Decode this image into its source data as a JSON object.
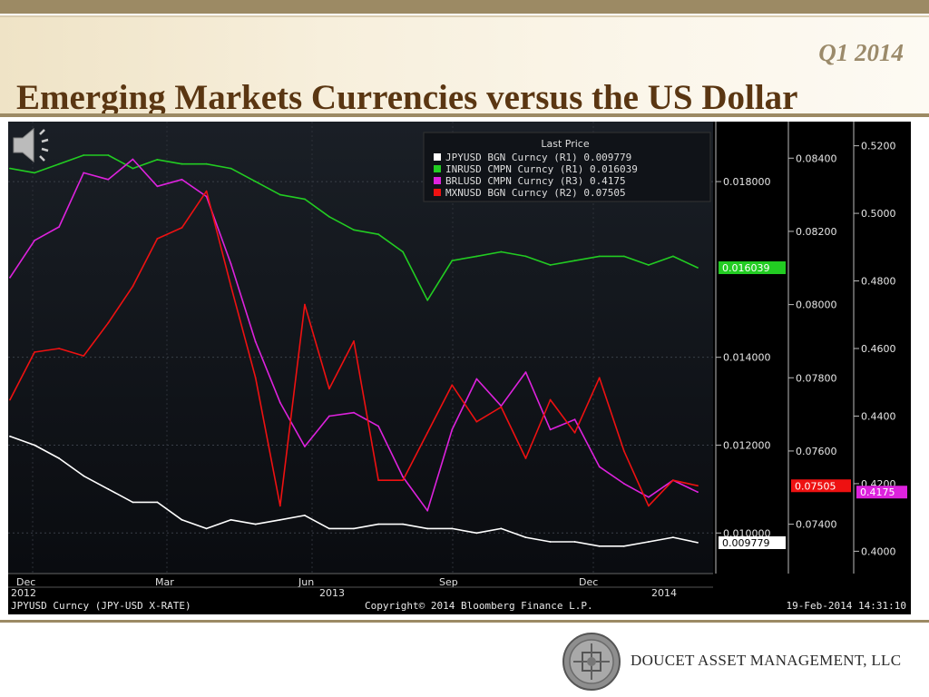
{
  "header": {
    "quarter": "Q1 2014",
    "title": "Emerging Markets Currencies versus the US Dollar"
  },
  "footer": {
    "company": "DOUCET ASSET MANAGEMENT, LLC"
  },
  "chart_data": {
    "type": "line",
    "legend": {
      "title": "Last Price",
      "placement": "top-right",
      "entries": [
        {
          "label": "JPYUSD BGN Curncy (R1) 0.009779",
          "color": "#ffffff"
        },
        {
          "label": "INRUSD CMPN Curncy (R1) 0.016039",
          "color": "#22cc22"
        },
        {
          "label": "BRLUSD CMPN Curncy (R3) 0.4175",
          "color": "#dd22dd"
        },
        {
          "label": "MXNUSD BGN Curncy (R2) 0.07505",
          "color": "#ee1111"
        }
      ]
    },
    "x_ticks": [
      "Dec",
      "Mar",
      "Jun",
      "Sep",
      "Dec"
    ],
    "x_year_labels": [
      "2012",
      "2013",
      "2014"
    ],
    "x_tick_2014": "2014",
    "footer_left": "JPYUSD Curncy (JPY-USD X-RATE)",
    "footer_center": "Copyright© 2014 Bloomberg Finance L.P.",
    "footer_right": "19-Feb-2014 14:31:10",
    "axes": {
      "R1": {
        "ylim": [
          0.0092,
          0.0192
        ],
        "ticks": [
          "0.018000",
          "0.014000",
          "0.012000",
          "0.010000"
        ],
        "tick_values": [
          0.018,
          0.014,
          0.012,
          0.01
        ]
      },
      "R2": {
        "ylim": [
          0.0728,
          0.0848
        ],
        "ticks": [
          "0.08400",
          "0.08200",
          "0.08000",
          "0.07800",
          "0.07600",
          "0.07400"
        ],
        "tick_values": [
          0.084,
          0.082,
          0.08,
          0.078,
          0.076,
          0.074
        ]
      },
      "R3": {
        "ylim": [
          0.395,
          0.525
        ],
        "ticks": [
          "0.5200",
          "0.5000",
          "0.4800",
          "0.4600",
          "0.4400",
          "0.4200",
          "0.4000"
        ],
        "tick_values": [
          0.52,
          0.5,
          0.48,
          0.46,
          0.44,
          0.42,
          0.4
        ]
      }
    },
    "last_value_tags": [
      {
        "series": "INRUSD",
        "label": "0.016039",
        "axis": "R1",
        "value": 0.016039,
        "color": "#22cc22"
      },
      {
        "series": "JPYUSD",
        "label": "0.009779",
        "axis": "R1",
        "value": 0.009779,
        "color": "#ffffff"
      },
      {
        "series": "MXNUSD",
        "label": "0.07505",
        "axis": "R2",
        "value": 0.07505,
        "color": "#ee1111"
      },
      {
        "series": "BRLUSD",
        "label": "0.4175",
        "axis": "R3",
        "value": 0.4175,
        "color": "#dd22dd"
      }
    ],
    "series": [
      {
        "name": "JPYUSD BGN Curncy",
        "axis": "R1",
        "color": "#ffffff",
        "values": [
          0.0122,
          0.012,
          0.0117,
          0.0113,
          0.011,
          0.0107,
          0.0107,
          0.0103,
          0.0101,
          0.0103,
          0.0102,
          0.0103,
          0.0104,
          0.0101,
          0.0101,
          0.0102,
          0.0102,
          0.0101,
          0.0101,
          0.01,
          0.0101,
          0.0099,
          0.0098,
          0.0098,
          0.0097,
          0.0097,
          0.0098,
          0.0099,
          0.00978
        ]
      },
      {
        "name": "INRUSD CMPN Curncy",
        "axis": "R1",
        "color": "#22cc22",
        "values": [
          0.0183,
          0.0182,
          0.0184,
          0.0186,
          0.0186,
          0.0183,
          0.0185,
          0.0184,
          0.0184,
          0.0183,
          0.018,
          0.0177,
          0.0176,
          0.0172,
          0.0169,
          0.0168,
          0.0164,
          0.0153,
          0.0162,
          0.0163,
          0.0164,
          0.0163,
          0.0161,
          0.0162,
          0.0163,
          0.0163,
          0.0161,
          0.0163,
          0.016039
        ]
      },
      {
        "name": "BRLUSD CMPN Curncy",
        "axis": "R3",
        "color": "#dd22dd",
        "values": [
          0.481,
          0.492,
          0.496,
          0.512,
          0.51,
          0.516,
          0.508,
          0.51,
          0.505,
          0.485,
          0.462,
          0.444,
          0.431,
          0.44,
          0.441,
          0.437,
          0.422,
          0.412,
          0.436,
          0.451,
          0.443,
          0.453,
          0.436,
          0.439,
          0.425,
          0.42,
          0.416,
          0.421,
          0.4175
        ]
      },
      {
        "name": "MXNUSD BGN Curncy",
        "axis": "R2",
        "color": "#ee1111",
        "values": [
          0.0774,
          0.0787,
          0.0788,
          0.0786,
          0.0795,
          0.0805,
          0.0818,
          0.0821,
          0.0831,
          0.0805,
          0.078,
          0.0745,
          0.08,
          0.0777,
          0.079,
          0.0752,
          0.0752,
          0.0765,
          0.0778,
          0.0768,
          0.0772,
          0.0758,
          0.0774,
          0.0765,
          0.078,
          0.076,
          0.0745,
          0.0752,
          0.07505
        ]
      }
    ]
  }
}
